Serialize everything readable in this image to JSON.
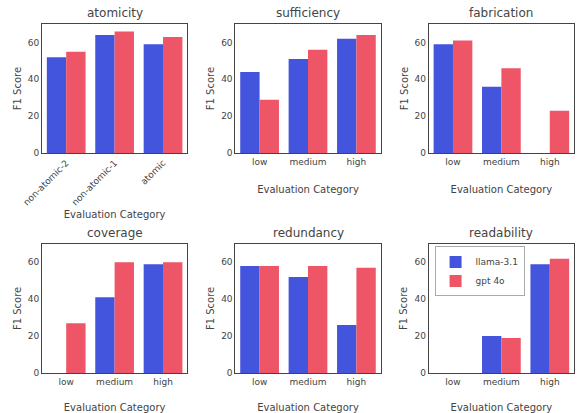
{
  "chart_data": [
    {
      "type": "bar",
      "title": "atomicity",
      "categories": [
        "non-atomic-2",
        "non-atomic-1",
        "atomic"
      ],
      "series": [
        {
          "name": "llama-3.1",
          "color": "#4455dd",
          "values": [
            52,
            64,
            59
          ]
        },
        {
          "name": "gpt 4o",
          "color": "#ee5566",
          "values": [
            55,
            66,
            63
          ]
        }
      ],
      "xlabel": "Evaluation Category",
      "ylabel": "F1 Score",
      "ylim": [
        0,
        70
      ],
      "yticks": [
        0,
        20,
        40,
        60
      ],
      "grid": false
    },
    {
      "type": "bar",
      "title": "sufficiency",
      "categories": [
        "low",
        "medium",
        "high"
      ],
      "series": [
        {
          "name": "llama-3.1",
          "color": "#4455dd",
          "values": [
            44,
            51,
            62
          ]
        },
        {
          "name": "gpt 4o",
          "color": "#ee5566",
          "values": [
            29,
            56,
            64
          ]
        }
      ],
      "xlabel": "Evaluation Category",
      "ylabel": "F1 Score",
      "ylim": [
        0,
        70
      ],
      "yticks": [
        0,
        20,
        40,
        60
      ],
      "grid": false
    },
    {
      "type": "bar",
      "title": "fabrication",
      "categories": [
        "low",
        "medium",
        "high"
      ],
      "series": [
        {
          "name": "llama-3.1",
          "color": "#4455dd",
          "values": [
            59,
            36,
            0
          ]
        },
        {
          "name": "gpt 4o",
          "color": "#ee5566",
          "values": [
            61,
            46,
            23
          ]
        }
      ],
      "xlabel": "Evaluation Category",
      "ylabel": "F1 Score",
      "ylim": [
        0,
        70
      ],
      "yticks": [
        0,
        20,
        40,
        60
      ],
      "grid": false
    },
    {
      "type": "bar",
      "title": "coverage",
      "categories": [
        "low",
        "medium",
        "high"
      ],
      "series": [
        {
          "name": "llama-3.1",
          "color": "#4455dd",
          "values": [
            0,
            41,
            59
          ]
        },
        {
          "name": "gpt 4o",
          "color": "#ee5566",
          "values": [
            27,
            60,
            60
          ]
        }
      ],
      "xlabel": "Evaluation Category",
      "ylabel": "F1 Score",
      "ylim": [
        0,
        70
      ],
      "yticks": [
        0,
        20,
        40,
        60
      ],
      "grid": false
    },
    {
      "type": "bar",
      "title": "redundancy",
      "categories": [
        "low",
        "medium",
        "high"
      ],
      "series": [
        {
          "name": "llama-3.1",
          "color": "#4455dd",
          "values": [
            58,
            52,
            26
          ]
        },
        {
          "name": "gpt 4o",
          "color": "#ee5566",
          "values": [
            58,
            58,
            57
          ]
        }
      ],
      "xlabel": "Evaluation Category",
      "ylabel": "F1 Score",
      "ylim": [
        0,
        70
      ],
      "yticks": [
        0,
        20,
        40,
        60
      ],
      "grid": false
    },
    {
      "type": "bar",
      "title": "readability",
      "categories": [
        "low",
        "medium",
        "high"
      ],
      "series": [
        {
          "name": "llama-3.1",
          "color": "#4455dd",
          "values": [
            0,
            20,
            59
          ]
        },
        {
          "name": "gpt 4o",
          "color": "#ee5566",
          "values": [
            0,
            19,
            62
          ]
        }
      ],
      "xlabel": "Evaluation Category",
      "ylabel": "F1 Score",
      "ylim": [
        0,
        70
      ],
      "yticks": [
        0,
        20,
        40,
        60
      ],
      "grid": false,
      "legend": "upper left"
    }
  ]
}
